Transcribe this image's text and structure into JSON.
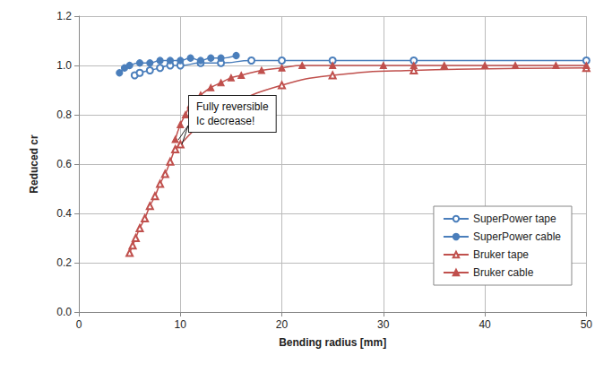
{
  "chart_data": {
    "type": "line",
    "x_label": "Bending radius [mm]",
    "y_label": "Reduced cr",
    "annotation": "Fully reversible\nIc decrease!",
    "xlim": [
      0,
      50
    ],
    "xticks": [
      0,
      10,
      20,
      30,
      40,
      50
    ],
    "ylim": [
      0,
      1.2
    ],
    "yticks": [
      {
        "value": 0,
        "label": "0.0"
      },
      {
        "value": 0.2,
        "label": "0.2"
      },
      {
        "value": 0.4,
        "label": "0.4"
      },
      {
        "value": 0.6,
        "label": "0.6"
      },
      {
        "value": 0.8,
        "label": "0.8"
      },
      {
        "value": 1.0,
        "label": "1.0"
      },
      {
        "value": 1.2,
        "label": "1.2"
      }
    ],
    "grid": true,
    "legend": "lower right",
    "series": [
      {
        "name": "SuperPower tape",
        "color": "#4a7ebb",
        "marker": "open_circle",
        "x": [
          5.5,
          6,
          7,
          8,
          9,
          10,
          12,
          14,
          17,
          20,
          25,
          33,
          50
        ],
        "values": [
          0.96,
          0.97,
          0.98,
          0.99,
          1.0,
          1.0,
          1.01,
          1.01,
          1.02,
          1.02,
          1.02,
          1.02,
          1.02
        ]
      },
      {
        "name": "SuperPower cable",
        "color": "#4a7ebb",
        "marker": "circle",
        "x": [
          4.0,
          4.5,
          5,
          6,
          7,
          8,
          9,
          10,
          11,
          12,
          13,
          14,
          15.5
        ],
        "values": [
          0.97,
          0.99,
          1.0,
          1.01,
          1.01,
          1.02,
          1.02,
          1.02,
          1.03,
          1.02,
          1.03,
          1.03,
          1.04
        ]
      },
      {
        "name": "Bruker tape",
        "color": "#c0504d",
        "marker": "open_triangle",
        "x": [
          5,
          5.3,
          5.6,
          6,
          6.5,
          7,
          7.5,
          8,
          8.5,
          9,
          9.5,
          10,
          12,
          15,
          20,
          25,
          33,
          50
        ],
        "values": [
          0.24,
          0.27,
          0.3,
          0.34,
          0.38,
          0.43,
          0.47,
          0.52,
          0.56,
          0.61,
          0.66,
          0.68,
          0.76,
          0.84,
          0.92,
          0.96,
          0.98,
          0.99
        ]
      },
      {
        "name": "Bruker cable",
        "color": "#c0504d",
        "marker": "triangle",
        "x": [
          9.5,
          10,
          10.5,
          11,
          11.5,
          12,
          13,
          14,
          15,
          16,
          18,
          20,
          22,
          25,
          30,
          33,
          36,
          40,
          43,
          47,
          50
        ],
        "values": [
          0.7,
          0.76,
          0.8,
          0.84,
          0.86,
          0.88,
          0.91,
          0.93,
          0.95,
          0.96,
          0.98,
          0.99,
          1.0,
          1.0,
          1.0,
          1.0,
          1.0,
          1.0,
          1.0,
          1.0,
          1.0
        ]
      }
    ]
  }
}
